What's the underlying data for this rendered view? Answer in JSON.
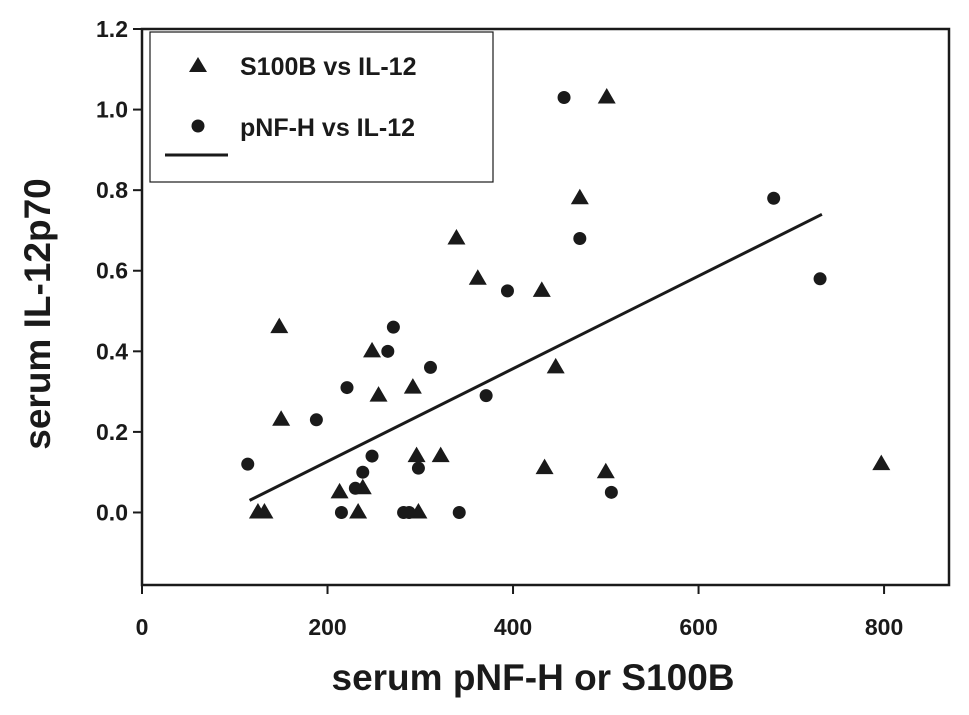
{
  "chart_data": {
    "type": "scatter",
    "title": "",
    "xlabel": "serum pNF-H or S100B",
    "ylabel": "serum IL-12p70",
    "xlim": [
      0,
      870
    ],
    "ylim": [
      -0.18,
      1.2
    ],
    "x_ticks": [
      "0",
      "200",
      "400",
      "600",
      "800"
    ],
    "x_tick_values": [
      0,
      200,
      400,
      600,
      800
    ],
    "y_ticks": [
      "0.0",
      "0.2",
      "0.4",
      "0.6",
      "0.8",
      "1.0",
      "1.2"
    ],
    "y_tick_values": [
      0.0,
      0.2,
      0.4,
      0.6,
      0.8,
      1.0,
      1.2
    ],
    "grid": false,
    "legend_position": "top-left",
    "color": "#1a1a1a",
    "series": [
      {
        "name": "S100B vs IL-12",
        "marker": "triangle",
        "points": [
          [
            125,
            0.0
          ],
          [
            132,
            0.0
          ],
          [
            148,
            0.46
          ],
          [
            150,
            0.23
          ],
          [
            213,
            0.05
          ],
          [
            233,
            0.0
          ],
          [
            238,
            0.06
          ],
          [
            248,
            0.4
          ],
          [
            255,
            0.29
          ],
          [
            292,
            0.31
          ],
          [
            296,
            0.14
          ],
          [
            298,
            0.0
          ],
          [
            322,
            0.14
          ],
          [
            339,
            0.68
          ],
          [
            362,
            0.58
          ],
          [
            431,
            0.55
          ],
          [
            434,
            0.11
          ],
          [
            446,
            0.36
          ],
          [
            472,
            0.78
          ],
          [
            500,
            0.1
          ],
          [
            501,
            1.03
          ],
          [
            797,
            0.12
          ]
        ]
      },
      {
        "name": "pNF-H vs IL-12",
        "marker": "circle",
        "points": [
          [
            114,
            0.12
          ],
          [
            188,
            0.23
          ],
          [
            215,
            0.0
          ],
          [
            221,
            0.31
          ],
          [
            230,
            0.06
          ],
          [
            238,
            0.1
          ],
          [
            248,
            0.14
          ],
          [
            265,
            0.4
          ],
          [
            271,
            0.46
          ],
          [
            282,
            0.0
          ],
          [
            288,
            0.0
          ],
          [
            298,
            0.11
          ],
          [
            311,
            0.36
          ],
          [
            342,
            0.0
          ],
          [
            371,
            0.29
          ],
          [
            394,
            0.55
          ],
          [
            455,
            1.03
          ],
          [
            472,
            0.68
          ],
          [
            506,
            0.05
          ],
          [
            681,
            0.78
          ],
          [
            731,
            0.58
          ]
        ]
      },
      {
        "name": "",
        "marker": "line",
        "points": [
          [
            116,
            0.03
          ],
          [
            733,
            0.74
          ]
        ]
      }
    ]
  }
}
